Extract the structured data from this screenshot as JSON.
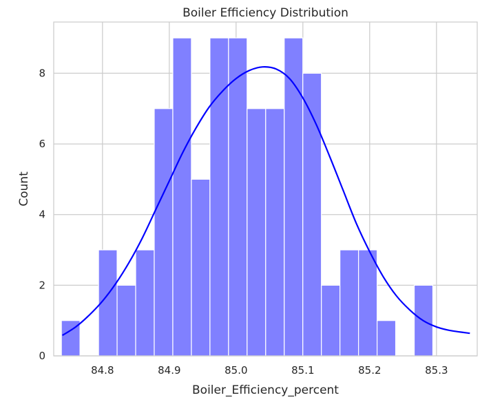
{
  "chart_data": {
    "type": "bar",
    "subtype": "histogram",
    "title": "Boiler Efficiency Distribution",
    "xlabel": "Boiler_Efficiency_percent",
    "ylabel": "Count",
    "xlim": [
      84.727,
      85.361
    ],
    "ylim": [
      0,
      9.45
    ],
    "xticks": [
      84.8,
      84.9,
      85.0,
      85.1,
      85.2,
      85.3
    ],
    "xtick_labels": [
      "84.8",
      "84.9",
      "85.0",
      "85.1",
      "85.2",
      "85.3"
    ],
    "yticks": [
      0,
      2,
      4,
      6,
      8
    ],
    "ytick_labels": [
      "0",
      "2",
      "4",
      "6",
      "8"
    ],
    "bin_start": 84.7385,
    "bin_width": 0.0278,
    "counts": [
      1,
      0,
      3,
      2,
      3,
      7,
      9,
      5,
      9,
      9,
      7,
      7,
      9,
      8,
      2,
      3,
      3,
      1,
      0,
      2
    ],
    "bar_color": "#8080ff",
    "bar_edge_color": "#ffffff",
    "kde": {
      "color": "#0000ff",
      "x": [
        84.74,
        84.76,
        84.78,
        84.8,
        84.82,
        84.84,
        84.86,
        84.88,
        84.9,
        84.92,
        84.94,
        84.96,
        84.98,
        85.0,
        85.02,
        85.04,
        85.06,
        85.08,
        85.1,
        85.12,
        85.14,
        85.16,
        85.18,
        85.2,
        85.22,
        85.24,
        85.26,
        85.28,
        85.3,
        85.32,
        85.35
      ],
      "y": [
        0.58,
        0.82,
        1.15,
        1.55,
        2.05,
        2.65,
        3.35,
        4.15,
        4.95,
        5.75,
        6.45,
        7.05,
        7.5,
        7.85,
        8.08,
        8.18,
        8.12,
        7.85,
        7.3,
        6.55,
        5.65,
        4.7,
        3.75,
        2.95,
        2.25,
        1.7,
        1.3,
        1.0,
        0.82,
        0.72,
        0.64
      ]
    },
    "grid": true
  }
}
